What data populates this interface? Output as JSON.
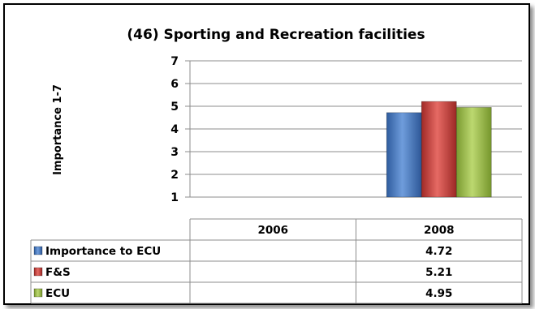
{
  "chart_data": {
    "type": "bar",
    "title": "(46) Sporting and Recreation facilities",
    "ylabel": "Importance 1-7",
    "xlabel": "",
    "categories": [
      "2006",
      "2008"
    ],
    "ylim": [
      1,
      7
    ],
    "yticks": [
      "1",
      "2",
      "3",
      "4",
      "5",
      "6",
      "7"
    ],
    "grid": true,
    "legend": "data-table-left",
    "series": [
      {
        "name": "Importance to ECU",
        "color": "#4a7bc4",
        "values": [
          null,
          4.72
        ],
        "labels": [
          "",
          "4.72"
        ]
      },
      {
        "name": "F&S",
        "color": "#c8403c",
        "values": [
          null,
          5.21
        ],
        "labels": [
          "",
          "5.21"
        ]
      },
      {
        "name": "ECU",
        "color": "#9abb46",
        "values": [
          null,
          4.95
        ],
        "labels": [
          "",
          "4.95"
        ]
      }
    ]
  }
}
